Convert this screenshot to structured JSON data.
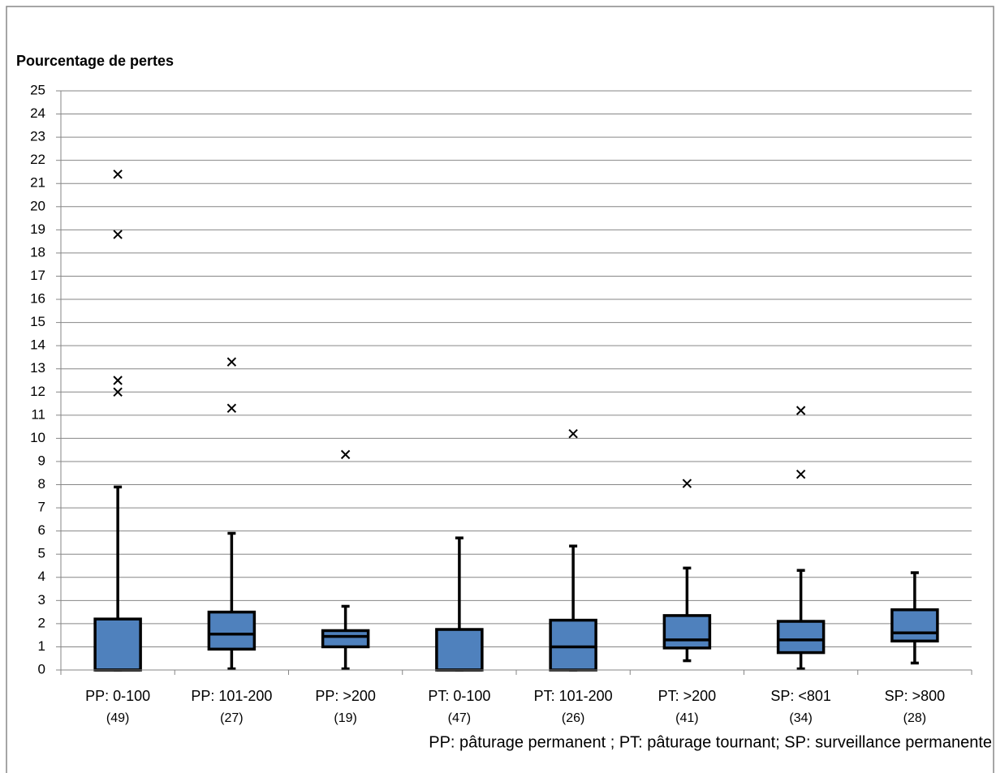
{
  "chart_data": {
    "type": "box",
    "title": "Pourcentage de pertes",
    "note": "PP: pâturage permanent ;  PT: pâturage tournant; SP: surveillance permanente",
    "categories": [
      "PP: 0-100",
      "PP: 101-200",
      "PP: >200",
      "PT: 0-100",
      "PT: 101-200",
      "PT: >200",
      "SP: <801",
      "SP:  >800"
    ],
    "sample_sizes": [
      "(49)",
      "(27)",
      "(19)",
      "(47)",
      "(26)",
      "(41)",
      "(34)",
      "(28)"
    ],
    "boxes": [
      {
        "min": 0,
        "q1": 0,
        "median": 0,
        "q3": 2.2,
        "max": 7.9,
        "outliers": [
          21.4,
          18.8,
          12.5,
          12.0
        ]
      },
      {
        "min": 0.05,
        "q1": 0.9,
        "median": 1.55,
        "q3": 2.5,
        "max": 5.9,
        "outliers": [
          13.3,
          11.3
        ]
      },
      {
        "min": 0.05,
        "q1": 1.0,
        "median": 1.45,
        "q3": 1.7,
        "max": 2.75,
        "outliers": [
          9.3
        ]
      },
      {
        "min": 0,
        "q1": 0,
        "median": 0,
        "q3": 1.75,
        "max": 5.7,
        "outliers": []
      },
      {
        "min": 0,
        "q1": 0,
        "median": 1.0,
        "q3": 2.15,
        "max": 5.35,
        "outliers": [
          10.2
        ]
      },
      {
        "min": 0.4,
        "q1": 0.95,
        "median": 1.3,
        "q3": 2.35,
        "max": 4.4,
        "outliers": [
          8.05
        ]
      },
      {
        "min": 0.05,
        "q1": 0.75,
        "median": 1.3,
        "q3": 2.1,
        "max": 4.3,
        "outliers": [
          11.2,
          8.45
        ]
      },
      {
        "min": 0.3,
        "q1": 1.25,
        "median": 1.6,
        "q3": 2.6,
        "max": 4.2,
        "outliers": []
      }
    ],
    "color": "#4f81bd",
    "ylim": [
      0,
      25
    ],
    "yticks": [
      0,
      1,
      2,
      3,
      4,
      5,
      6,
      7,
      8,
      9,
      10,
      11,
      12,
      13,
      14,
      15,
      16,
      17,
      18,
      19,
      20,
      21,
      22,
      23,
      24,
      25
    ],
    "grid": true
  }
}
